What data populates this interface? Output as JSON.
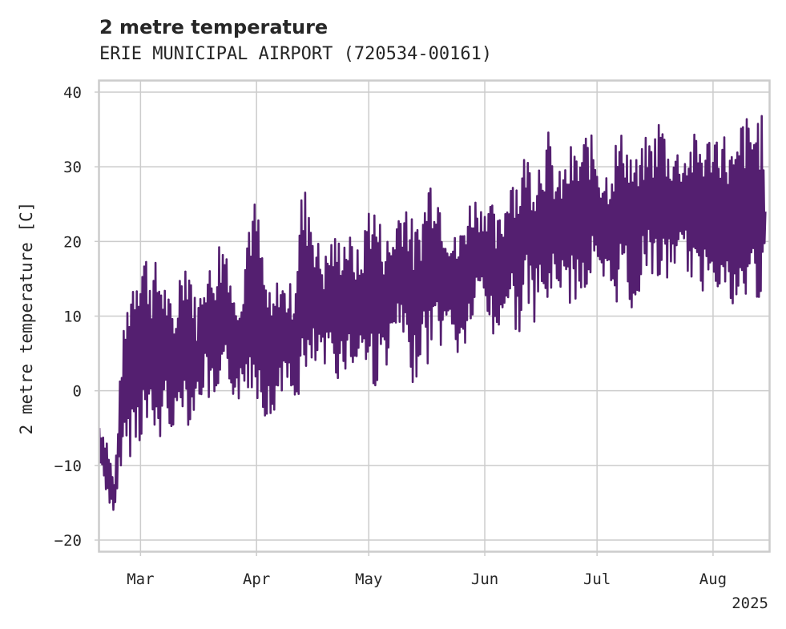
{
  "chart_data": {
    "type": "line",
    "title": "2 metre temperature",
    "subtitle": "ERIE MUNICIPAL AIRPORT (720534-00161)",
    "ylabel": "2 metre temperature [C]",
    "xlabel": "",
    "x_range": [
      "2025-02-18",
      "2025-08-16"
    ],
    "ylim": [
      -21.5,
      41.5
    ],
    "y_ticks": [
      -20,
      -10,
      0,
      10,
      20,
      30,
      40
    ],
    "x_ticks": [
      {
        "date": "2025-03-01",
        "label": "Mar"
      },
      {
        "date": "2025-04-01",
        "label": "Apr"
      },
      {
        "date": "2025-05-01",
        "label": "May"
      },
      {
        "date": "2025-06-01",
        "label": "Jun"
      },
      {
        "date": "2025-07-01",
        "label": "Jul"
      },
      {
        "date": "2025-08-01",
        "label": "Aug"
      }
    ],
    "x_offset_label": "2025",
    "grid": true,
    "series_color": "#541f70",
    "series": [
      {
        "x": [
          "2025-02-18",
          "2025-02-20",
          "2025-02-22",
          "2025-02-24",
          "2025-02-26",
          "2025-02-28",
          "2025-03-02",
          "2025-03-04",
          "2025-03-06",
          "2025-03-08",
          "2025-03-10",
          "2025-03-12",
          "2025-03-14",
          "2025-03-16",
          "2025-03-18",
          "2025-03-20",
          "2025-03-22",
          "2025-03-24",
          "2025-03-26",
          "2025-03-28",
          "2025-03-30",
          "2025-04-01",
          "2025-04-03",
          "2025-04-05",
          "2025-04-07",
          "2025-04-09",
          "2025-04-11",
          "2025-04-13",
          "2025-04-15",
          "2025-04-17",
          "2025-04-19",
          "2025-04-21",
          "2025-04-23",
          "2025-04-25",
          "2025-04-27",
          "2025-04-29",
          "2025-05-01",
          "2025-05-03",
          "2025-05-05",
          "2025-05-07",
          "2025-05-09",
          "2025-05-11",
          "2025-05-13",
          "2025-05-15",
          "2025-05-17",
          "2025-05-19",
          "2025-05-21",
          "2025-05-23",
          "2025-05-25",
          "2025-05-27",
          "2025-05-29",
          "2025-05-31",
          "2025-06-02",
          "2025-06-04",
          "2025-06-06",
          "2025-06-08",
          "2025-06-10",
          "2025-06-12",
          "2025-06-14",
          "2025-06-16",
          "2025-06-18",
          "2025-06-20",
          "2025-06-22",
          "2025-06-24",
          "2025-06-26",
          "2025-06-28",
          "2025-06-30",
          "2025-07-02",
          "2025-07-04",
          "2025-07-06",
          "2025-07-08",
          "2025-07-10",
          "2025-07-12",
          "2025-07-14",
          "2025-07-16",
          "2025-07-18",
          "2025-07-20",
          "2025-07-22",
          "2025-07-24",
          "2025-07-26",
          "2025-07-28",
          "2025-07-30",
          "2025-08-01",
          "2025-08-03",
          "2025-08-05",
          "2025-08-07",
          "2025-08-09",
          "2025-08-11",
          "2025-08-13",
          "2025-08-15"
        ],
        "min": [
          -10,
          -14,
          -18,
          -9,
          -9,
          -8,
          -6,
          -7,
          -8,
          -3,
          -7,
          -2,
          -5,
          -3,
          0,
          -3,
          -5,
          1,
          -1,
          -2,
          0,
          -1,
          -3,
          -6,
          0,
          0,
          -3,
          0,
          -1,
          3,
          2,
          4,
          1,
          3,
          2,
          5,
          1,
          0,
          3,
          4,
          8,
          2,
          0,
          5,
          3,
          7,
          5,
          9,
          3,
          6,
          9,
          13,
          9,
          5,
          11,
          10,
          7,
          12,
          9,
          11,
          10,
          14,
          13,
          11,
          13,
          12,
          16,
          12,
          13,
          11,
          16,
          10,
          12,
          17,
          15,
          14,
          14,
          17,
          17,
          15,
          11,
          14,
          16,
          12,
          11,
          9,
          10,
          13,
          12,
          12
        ],
        "max": [
          -4,
          -6,
          -12,
          6,
          15,
          19,
          20,
          17,
          18,
          14,
          10,
          19,
          19,
          11,
          17,
          17,
          21,
          21,
          13,
          15,
          25,
          26,
          17,
          12,
          16,
          14,
          15,
          27,
          28,
          21,
          18,
          21,
          21,
          22,
          20,
          18,
          27,
          25,
          21,
          21,
          25,
          27,
          22,
          23,
          30,
          29,
          25,
          21,
          21,
          25,
          27,
          25,
          27,
          23,
          24,
          31,
          29,
          33,
          30,
          33,
          35,
          29,
          30,
          33,
          32,
          35,
          34,
          31,
          30,
          34,
          35,
          33,
          31,
          34,
          34,
          38,
          33,
          33,
          32,
          34,
          35,
          34,
          35,
          36,
          34,
          32,
          38,
          36,
          38,
          36
        ]
      }
    ]
  }
}
